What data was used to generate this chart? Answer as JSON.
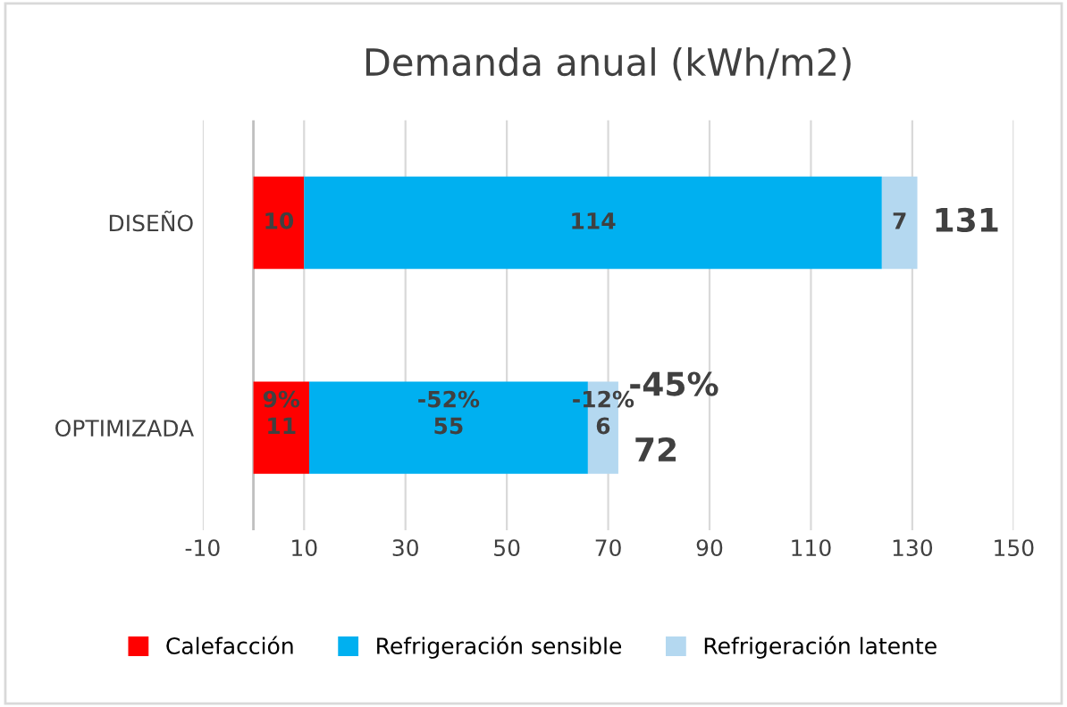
{
  "chart_data": {
    "type": "bar",
    "orientation": "horizontal",
    "stacked": true,
    "title": "Demanda anual (kWh/m2)",
    "categories": [
      "DISEÑO",
      "OPTIMIZADA"
    ],
    "series": [
      {
        "name": "Calefacción",
        "color": "#ff0000",
        "values": [
          10,
          11
        ]
      },
      {
        "name": "Refrigeración sensible",
        "color": "#00b0f0",
        "values": [
          114,
          55
        ]
      },
      {
        "name": "Refrigeración latente",
        "color": "#b4d8f0",
        "values": [
          7,
          6
        ]
      }
    ],
    "data_labels": true,
    "totals": [
      "131",
      "72"
    ],
    "annotations": [
      "9%",
      "-52%",
      "-12%",
      "-45%"
    ],
    "xlim": [
      -10,
      150
    ],
    "xticks": [
      -10,
      10,
      30,
      50,
      70,
      90,
      110,
      130,
      150
    ],
    "grid": "x",
    "legend": "bottom"
  }
}
